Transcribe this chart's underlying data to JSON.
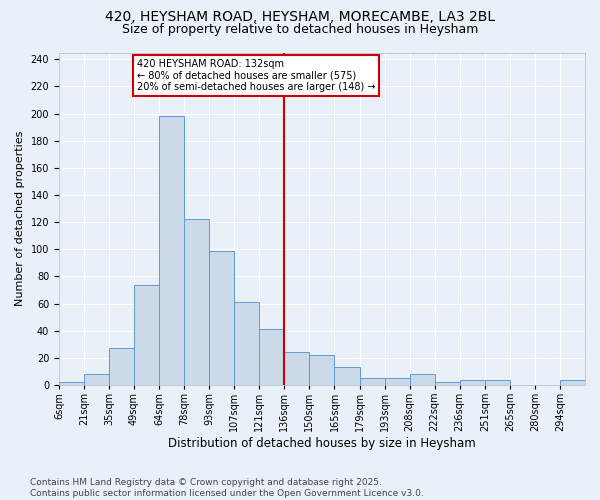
{
  "title1": "420, HEYSHAM ROAD, HEYSHAM, MORECAMBE, LA3 2BL",
  "title2": "Size of property relative to detached houses in Heysham",
  "xlabel": "Distribution of detached houses by size in Heysham",
  "ylabel": "Number of detached properties",
  "categories": [
    "6sqm",
    "21sqm",
    "35sqm",
    "49sqm",
    "64sqm",
    "78sqm",
    "93sqm",
    "107sqm",
    "121sqm",
    "136sqm",
    "150sqm",
    "165sqm",
    "179sqm",
    "193sqm",
    "208sqm",
    "222sqm",
    "236sqm",
    "251sqm",
    "265sqm",
    "280sqm",
    "294sqm"
  ],
  "bar_heights": [
    2,
    8,
    27,
    74,
    198,
    122,
    99,
    61,
    41,
    24,
    22,
    13,
    5,
    5,
    8,
    2,
    4,
    4,
    0,
    0,
    4
  ],
  "bar_color": "#ccd9e8",
  "bar_edge_color": "#5b9bd5",
  "vline_bin_index": 9.0,
  "annotation_title": "420 HEYSHAM ROAD: 132sqm",
  "annotation_line1": "← 80% of detached houses are smaller (575)",
  "annotation_line2": "20% of semi-detached houses are larger (148) →",
  "annotation_box_color": "#ffffff",
  "annotation_box_edge_color": "#cc0000",
  "vline_color": "#cc0000",
  "ylim": [
    0,
    245
  ],
  "yticks": [
    0,
    20,
    40,
    60,
    80,
    100,
    120,
    140,
    160,
    180,
    200,
    220,
    240
  ],
  "footer": "Contains HM Land Registry data © Crown copyright and database right 2025.\nContains public sector information licensed under the Open Government Licence v3.0.",
  "bg_color": "#eaf0f8",
  "grid_color": "#ffffff",
  "title_fontsize": 10,
  "subtitle_fontsize": 9,
  "tick_fontsize": 7,
  "ylabel_fontsize": 8,
  "xlabel_fontsize": 8.5,
  "footer_fontsize": 6.5
}
